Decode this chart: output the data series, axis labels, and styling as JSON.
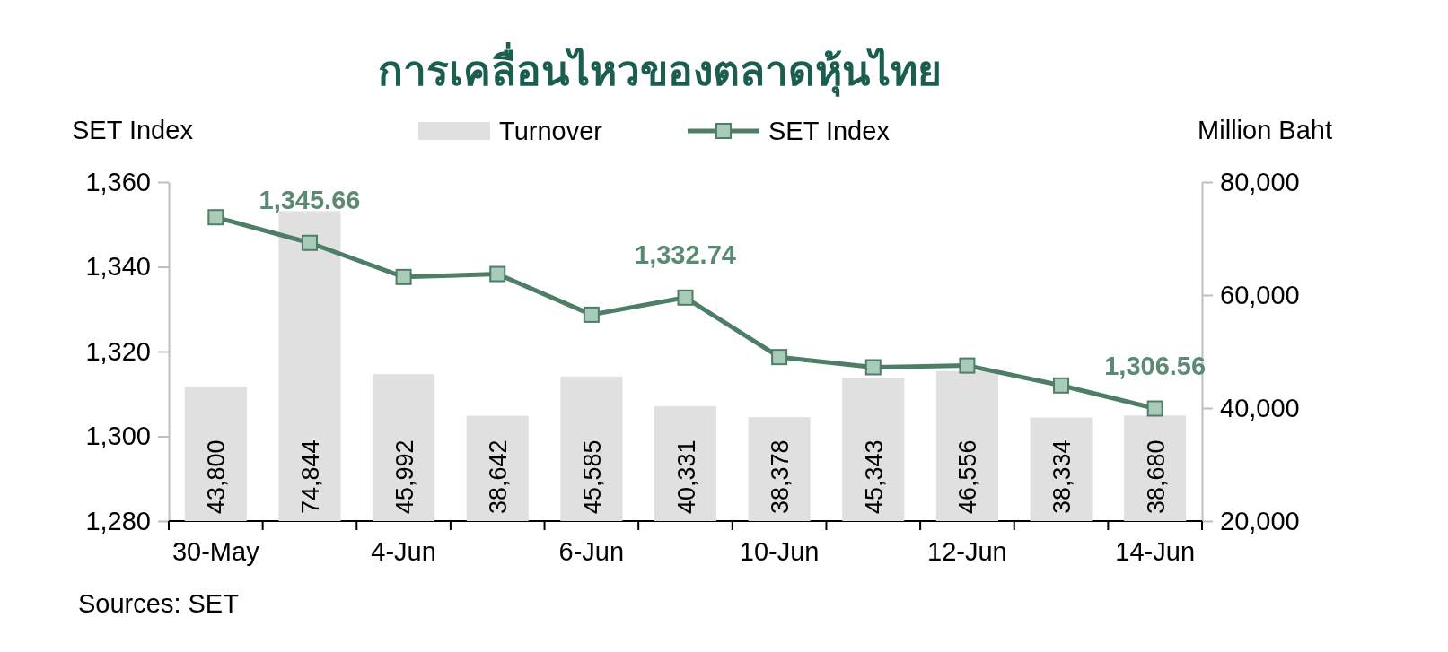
{
  "chart_data": {
    "type": "bar",
    "title": "การเคลื่อนไหวของตลาดหุ้นไทย",
    "ylabel": "SET Index",
    "y2label": "Million Baht",
    "categories": [
      "30-May",
      null,
      "4-Jun",
      null,
      "6-Jun",
      null,
      "10-Jun",
      null,
      "12-Jun",
      null,
      "14-Jun"
    ],
    "series": [
      {
        "name": "Turnover",
        "axis": "y2",
        "color": "#e0e0e0",
        "values": [
          43800,
          74844,
          45992,
          38642,
          45585,
          40331,
          38378,
          45343,
          46556,
          38334,
          38680
        ],
        "value_labels": [
          "43,800",
          "74,844",
          "45,992",
          "38,642",
          "45,585",
          "40,331",
          "38,378",
          "45,343",
          "46,556",
          "38,334",
          "38,680"
        ]
      },
      {
        "name": "SET Index",
        "type": "line",
        "axis": "y",
        "color": "#4e7d68",
        "values": [
          1351.7,
          1345.66,
          1337.6,
          1338.3,
          1328.7,
          1332.74,
          1318.7,
          1316.3,
          1316.7,
          1312.0,
          1306.56
        ],
        "value_labels": [
          null,
          "1,345.66",
          null,
          null,
          null,
          "1,332.74",
          null,
          null,
          null,
          null,
          "1,306.56"
        ]
      }
    ],
    "ylim": [
      1280,
      1360
    ],
    "yticks": [
      {
        "value": 1280,
        "label": "1,280"
      },
      {
        "value": 1300,
        "label": "1,300"
      },
      {
        "value": 1320,
        "label": "1,320"
      },
      {
        "value": 1340,
        "label": "1,340"
      },
      {
        "value": 1360,
        "label": "1,360"
      }
    ],
    "y2lim": [
      20000,
      80000
    ],
    "y2ticks": [
      {
        "value": 20000,
        "label": "20,000"
      },
      {
        "value": 40000,
        "label": "40,000"
      },
      {
        "value": 60000,
        "label": "60,000"
      },
      {
        "value": 80000,
        "label": "80,000"
      }
    ],
    "marker": "square",
    "line_style": "solid",
    "legend": "top",
    "grid": false,
    "annotations": [
      "Sources: SET"
    ]
  }
}
